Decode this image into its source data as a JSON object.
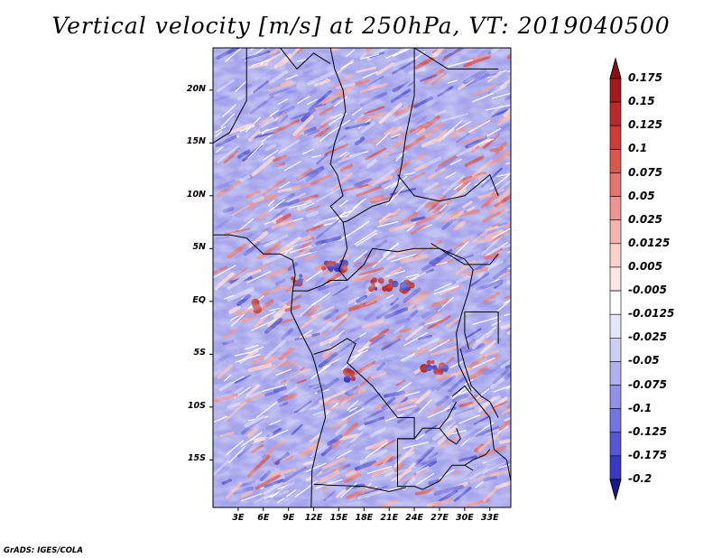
{
  "title": "Vertical velocity [m/s] at 250hPa, VT: 2019040500",
  "credit": "GrADS: IGES/COLA",
  "map": {
    "variable": "vertical velocity",
    "units": "m/s",
    "level": "250hPa",
    "valid_time": "2019040500",
    "lat_range": [
      -19.5,
      24
    ],
    "lon_range": [
      0,
      35.5
    ],
    "lat_ticks": [
      {
        "value": 20,
        "label": "20N"
      },
      {
        "value": 15,
        "label": "15N"
      },
      {
        "value": 10,
        "label": "10N"
      },
      {
        "value": 5,
        "label": "5N"
      },
      {
        "value": 0,
        "label": "EQ"
      },
      {
        "value": -5,
        "label": "5S"
      },
      {
        "value": -10,
        "label": "10S"
      },
      {
        "value": -15,
        "label": "15S"
      }
    ],
    "lon_ticks": [
      {
        "value": 3,
        "label": "3E"
      },
      {
        "value": 6,
        "label": "6E"
      },
      {
        "value": 9,
        "label": "9E"
      },
      {
        "value": 12,
        "label": "12E"
      },
      {
        "value": 15,
        "label": "15E"
      },
      {
        "value": 18,
        "label": "18E"
      },
      {
        "value": 21,
        "label": "21E"
      },
      {
        "value": 24,
        "label": "24E"
      },
      {
        "value": 27,
        "label": "27E"
      },
      {
        "value": 30,
        "label": "30E"
      },
      {
        "value": 33,
        "label": "33E"
      }
    ]
  },
  "colorbar": {
    "levels": [
      {
        "label": "0.175",
        "color": "#a11a1c"
      },
      {
        "label": "0.15",
        "color": "#b92a2a"
      },
      {
        "label": "0.125",
        "color": "#cc3c3a"
      },
      {
        "label": "0.1",
        "color": "#da5651"
      },
      {
        "label": "0.075",
        "color": "#e47470"
      },
      {
        "label": "0.05",
        "color": "#ec9592"
      },
      {
        "label": "0.025",
        "color": "#f3b4b1"
      },
      {
        "label": "0.0125",
        "color": "#f8d1cf"
      },
      {
        "label": "0.005",
        "color": "#fbe6e5"
      },
      {
        "label": "-0.005",
        "color": "#ffffff"
      },
      {
        "label": "-0.0125",
        "color": "#e6e6fb"
      },
      {
        "label": "-0.025",
        "color": "#cdcdf6"
      },
      {
        "label": "-0.05",
        "color": "#b0b0f0"
      },
      {
        "label": "-0.075",
        "color": "#9191e8"
      },
      {
        "label": "-0.1",
        "color": "#7474df"
      },
      {
        "label": "-0.125",
        "color": "#5656d2"
      },
      {
        "label": "-0.175",
        "color": "#3a3ac1"
      },
      {
        "label": "-0.2",
        "color": "#2424a8"
      }
    ],
    "top_color": "#8e0f12",
    "bottom_color": "#1a1a90"
  }
}
